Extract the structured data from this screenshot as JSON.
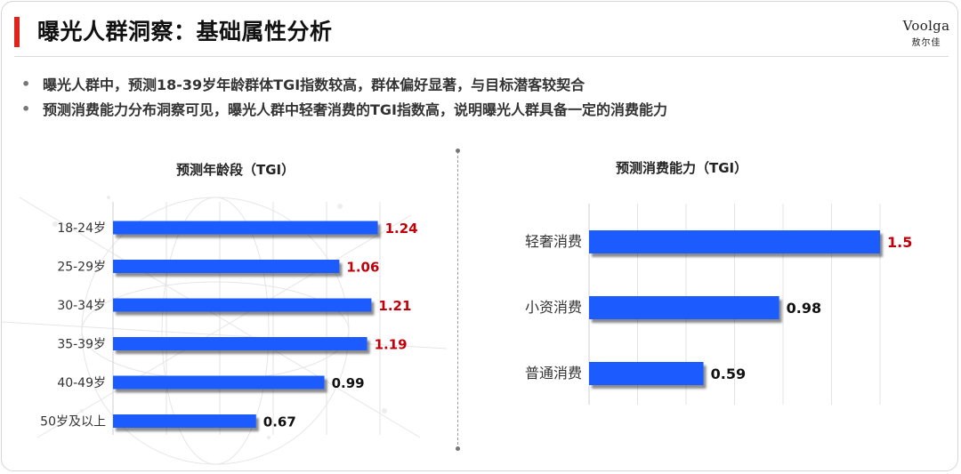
{
  "header": {
    "title": "曝光人群洞察：基础属性分析",
    "logo_main": "Voolga",
    "logo_sub": "敖尔佳"
  },
  "bullets": [
    "曝光人群中，预测18-39岁年龄群体TGI指数较高，群体偏好显著，与目标潜客较契合",
    "预测消费能力分布洞察可见，曝光人群中轻奢消费的TGI指数高，说明曝光人群具备一定的消费能力"
  ],
  "colors": {
    "bar": "#1f5cff",
    "highlight_label": "#c0000a",
    "normal_label": "#111111",
    "accent": "#e0241b"
  },
  "chart_data": [
    {
      "type": "bar",
      "orientation": "horizontal",
      "title": "预测年龄段（TGI）",
      "categories": [
        "18-24岁",
        "25-29岁",
        "30-34岁",
        "35-39岁",
        "40-49岁",
        "50岁及以上"
      ],
      "values": [
        1.24,
        1.06,
        1.21,
        1.19,
        0.99,
        0.67
      ],
      "value_labels": [
        "1.24",
        "1.06",
        "1.21",
        "1.19",
        "0.99",
        "0.67"
      ],
      "highlighted": [
        true,
        true,
        true,
        true,
        false,
        false
      ],
      "xlim": [
        0,
        1.5
      ],
      "grid": true
    },
    {
      "type": "bar",
      "orientation": "horizontal",
      "title": "预测消费能力（TGI）",
      "categories": [
        "轻奢消费",
        "小资消费",
        "普通消费"
      ],
      "values": [
        1.5,
        0.98,
        0.59
      ],
      "value_labels": [
        "1.5",
        "0.98",
        "0.59"
      ],
      "highlighted": [
        true,
        false,
        false
      ],
      "xlim": [
        0,
        1.5
      ],
      "grid": true
    }
  ]
}
